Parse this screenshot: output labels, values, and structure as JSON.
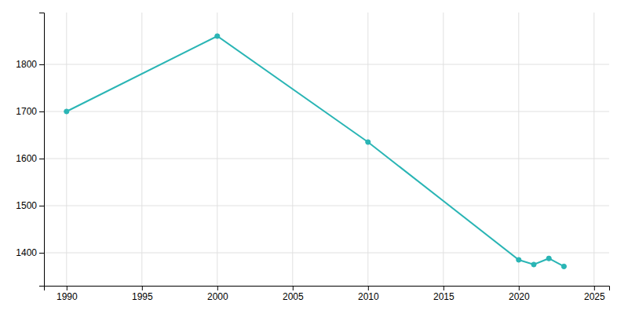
{
  "chart_data": {
    "type": "line",
    "x": [
      1990,
      2000,
      2010,
      2020,
      2021,
      2022,
      2023
    ],
    "values": [
      1700,
      1860,
      1635,
      1385,
      1375,
      1388,
      1371
    ],
    "color": "#2ab5b5",
    "marker": "circle",
    "xlim": [
      1988.5,
      2026
    ],
    "ylim": [
      1330,
      1910
    ],
    "xticks": [
      1990,
      1995,
      2000,
      2005,
      2010,
      2015,
      2020,
      2025
    ],
    "yticks": [
      1400,
      1500,
      1600,
      1700,
      1800
    ],
    "grid": true
  }
}
